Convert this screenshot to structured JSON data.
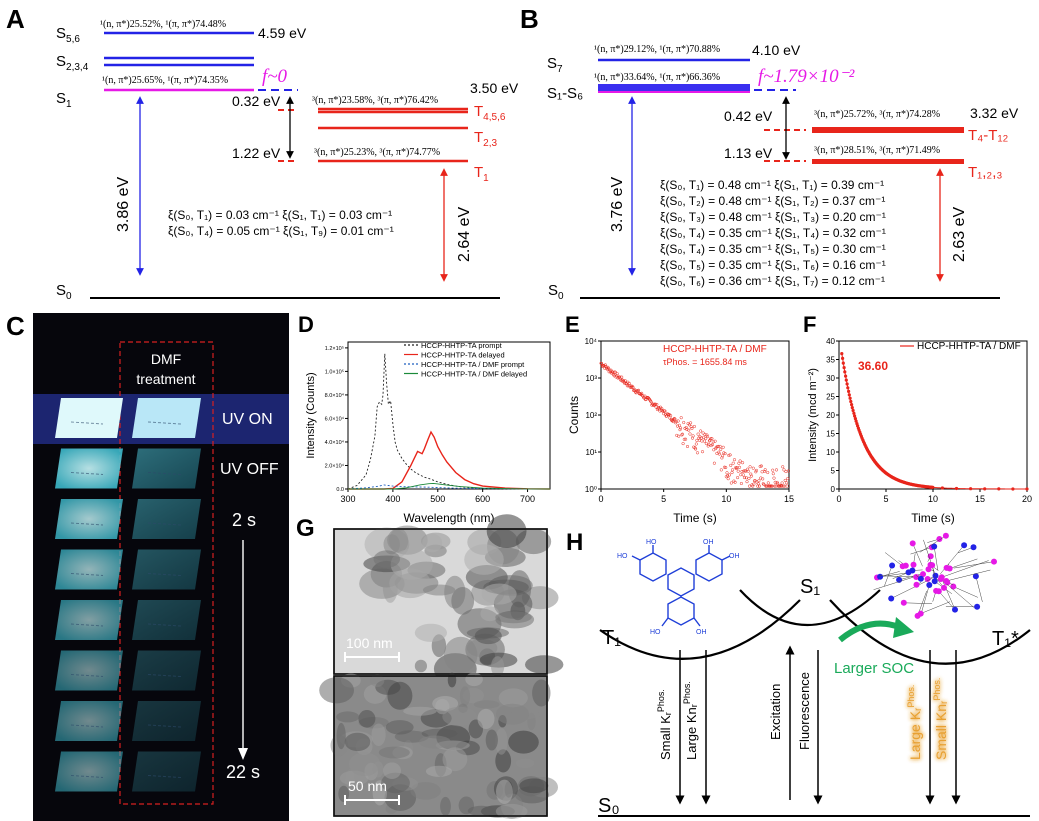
{
  "colors": {
    "singlet_blue": "#2323e6",
    "triplet_red": "#e8251b",
    "magenta": "#e619e6",
    "uv_glow": "#7fe6f0",
    "green_arrow": "#1aaa5a"
  },
  "panelA": {
    "label": "A",
    "s56": "S",
    "s56_sub": "5,6",
    "s234": "S",
    "s234_sub": "2,3,4",
    "s1": "S",
    "s1_sub": "1",
    "s0": "S",
    "s0_sub": "0",
    "e_s56": "4.59 eV",
    "comp_s56": "¹(n, π*)25.52%, ¹(π, π*)74.48%",
    "comp_s1": "¹(n, π*)25.65%, ¹(π, π*)74.35%",
    "f_value": "f~0",
    "t456": "T",
    "t456_sub": "4,5,6",
    "t23": "T",
    "t23_sub": "2,3",
    "t1": "T",
    "t1_sub": "1",
    "e_t456": "3.50 eV",
    "comp_t456": "³(n, π*)23.58%, ³(π, π*)76.42%",
    "comp_t1": "³(n, π*)25.23%, ³(π, π*)74.77%",
    "gap1": "0.32 eV",
    "gap2": "1.22 eV",
    "e_s1_arrow": "3.86 eV",
    "e_t1_arrow": "2.64 eV",
    "soc": [
      "ξ(S₀, T₁) = 0.03 cm⁻¹ ξ(S₁, T₁) = 0.03 cm⁻¹",
      "ξ(S₀, T₄) = 0.05 cm⁻¹ ξ(S₁, T₉) = 0.01 cm⁻¹"
    ]
  },
  "panelB": {
    "label": "B",
    "s7": "S",
    "s7_sub": "7",
    "s1s6": "S₁-S₆",
    "s0": "S",
    "s0_sub": "0",
    "e_s7": "4.10 eV",
    "comp_s7": "¹(n, π*)29.12%, ¹(π, π*)70.88%",
    "comp_s1": "¹(n, π*)33.64%, ¹(π, π*)66.36%",
    "f_value": "f~1.79×10⁻²",
    "e_t4": "3.32 eV",
    "comp_t4": "³(n, π*)25.72%, ³(π, π*)74.28%",
    "comp_t1": "³(n, π*)28.51%, ³(π, π*)71.49%",
    "t4t12": "T₄-T₁₂",
    "t123": "T₁,₂,₃",
    "gap1": "0.42 eV",
    "gap2": "1.13 eV",
    "e_s1_arrow": "3.76 eV",
    "e_t1_arrow": "2.63 eV",
    "soc": [
      "ξ(S₀, T₁) = 0.48 cm⁻¹ ξ(S₁, T₁) = 0.39 cm⁻¹",
      "ξ(S₀, T₂) = 0.48 cm⁻¹ ξ(S₁, T₂) = 0.37 cm⁻¹",
      "ξ(S₀, T₃) = 0.48 cm⁻¹ ξ(S₁, T₃) = 0.20 cm⁻¹",
      "ξ(S₀, T₄) = 0.35 cm⁻¹ ξ(S₁, T₄) = 0.32 cm⁻¹",
      "ξ(S₀, T₄) = 0.35 cm⁻¹ ξ(S₁, T₅) = 0.30 cm⁻¹",
      "ξ(S₀, T₅) = 0.35 cm⁻¹ ξ(S₁, T₆) = 0.16 cm⁻¹",
      "ξ(S₀, T₆) = 0.36 cm⁻¹ ξ(S₁, T₇) = 0.12 cm⁻¹"
    ]
  },
  "panelC": {
    "label": "C",
    "dmf_1": "DMF",
    "dmf_2": "treatment",
    "uv_on": "UV ON",
    "uv_off": "UV OFF",
    "t_start": "2 s",
    "t_end": "22 s"
  },
  "panelG": {
    "label": "G",
    "scale1": "100 nm",
    "scale2": "50 nm"
  },
  "panelH": {
    "label": "H",
    "s1": "S₁",
    "t1": "T₁",
    "t1star": "T₁*",
    "s0": "S₀",
    "larger_soc": "Larger SOC",
    "small_kr": "Small Kᵣ",
    "small_kr_sup": "Phos.",
    "large_knr": "Large Knᵣ",
    "large_knr_sup": "Phos.",
    "excitation": "Excitation",
    "fluorescence": "Fluorescence",
    "large_kr": "Large Kᵣ",
    "large_kr_sup": "Phos.",
    "small_knr": "Small Knᵣ",
    "small_knr_sup": "Phos.",
    "mol_OH": "OH",
    "mol_HO": "HO"
  },
  "chart_data": [
    {
      "panel": "D",
      "type": "line",
      "title": "",
      "xlabel": "Wavelength (nm)",
      "ylabel": "Intensity (Counts)",
      "xlim": [
        300,
        750
      ],
      "ylim": [
        0,
        125000
      ],
      "xticks": [
        "300",
        "400",
        "500",
        "600",
        "700"
      ],
      "yticks": [
        "0.0",
        "2.0×10⁴",
        "4.0×10⁴",
        "6.0×10⁴",
        "8.0×10⁴",
        "1.0×10⁵",
        "1.2×10⁵"
      ],
      "ytick_values": [
        0,
        20000,
        40000,
        60000,
        80000,
        100000,
        120000
      ],
      "series": [
        {
          "name": "HCCP-HHTP-TA prompt",
          "color": "#222222",
          "dash": "2,2",
          "x": [
            300,
            320,
            340,
            350,
            360,
            365,
            370,
            375,
            378,
            382,
            386,
            390,
            395,
            400,
            405,
            410,
            420,
            430,
            440,
            450,
            460,
            470,
            480,
            490,
            500,
            520,
            540,
            560,
            600,
            650,
            700,
            750
          ],
          "y": [
            0,
            3000,
            12000,
            25000,
            45000,
            70000,
            74000,
            72000,
            80000,
            115000,
            90000,
            72000,
            75000,
            55000,
            40000,
            33000,
            26000,
            21000,
            17000,
            14000,
            12000,
            10000,
            9000,
            7500,
            6000,
            4000,
            2500,
            1500,
            500,
            200,
            100,
            0
          ]
        },
        {
          "name": "HCCP-HHTP-TA delayed",
          "color": "#e8251b",
          "dash": "",
          "x": [
            300,
            380,
            400,
            420,
            440,
            455,
            465,
            470,
            478,
            485,
            492,
            500,
            510,
            520,
            540,
            560,
            580,
            600,
            650,
            700,
            750
          ],
          "y": [
            0,
            0,
            500,
            6000,
            20000,
            32000,
            30000,
            34000,
            42000,
            48500,
            44000,
            36000,
            29000,
            23000,
            14000,
            8000,
            4500,
            2500,
            800,
            200,
            0
          ]
        },
        {
          "name": "HCCP-HHTP-TA / DMF prompt",
          "color": "#1f5fbf",
          "dash": "2,2",
          "x": [
            300,
            340,
            370,
            380,
            390,
            400,
            420,
            450,
            480,
            500,
            550,
            600,
            700,
            750
          ],
          "y": [
            0,
            1000,
            2500,
            3500,
            3000,
            2500,
            2000,
            1800,
            1500,
            1200,
            600,
            300,
            100,
            0
          ]
        },
        {
          "name": "HCCP-HHTP-TA / DMF delayed",
          "color": "#1b8a3a",
          "dash": "",
          "x": [
            300,
            400,
            430,
            460,
            480,
            490,
            500,
            520,
            550,
            600,
            650,
            700,
            750
          ],
          "y": [
            0,
            0,
            1000,
            3500,
            4500,
            4800,
            4300,
            3300,
            2000,
            800,
            300,
            100,
            0
          ]
        }
      ]
    },
    {
      "panel": "E",
      "type": "scatter",
      "xlabel": "Time (s)",
      "ylabel": "Counts",
      "xlim": [
        0,
        15
      ],
      "ylim": [
        1,
        10000
      ],
      "yscale": "log",
      "xticks": [
        "0",
        "5",
        "10",
        "15"
      ],
      "yticks": [
        "10⁰",
        "10¹",
        "10²",
        "10³",
        "10⁴"
      ],
      "legend": "HCCP-HHTP-TA / DMF",
      "annotation": "τPhos. = 1655.84 ms",
      "decay": {
        "amplitude": 2500,
        "tau_s": 1.65584,
        "noise_floor_start_s": 10
      }
    },
    {
      "panel": "F",
      "type": "line",
      "xlabel": "Time (s)",
      "ylabel": "Intensity (mcd m⁻²)",
      "xlim": [
        0,
        20
      ],
      "ylim": [
        0,
        40
      ],
      "xticks": [
        "0",
        "5",
        "10",
        "15",
        "20"
      ],
      "yticks": [
        "0",
        "5",
        "10",
        "15",
        "20",
        "25",
        "30",
        "35",
        "40"
      ],
      "legend": "HCCP-HHTP-TA / DMF",
      "annotation": "36.60",
      "decay": {
        "amplitude": 36.6,
        "tau_s": 2.2
      }
    }
  ]
}
